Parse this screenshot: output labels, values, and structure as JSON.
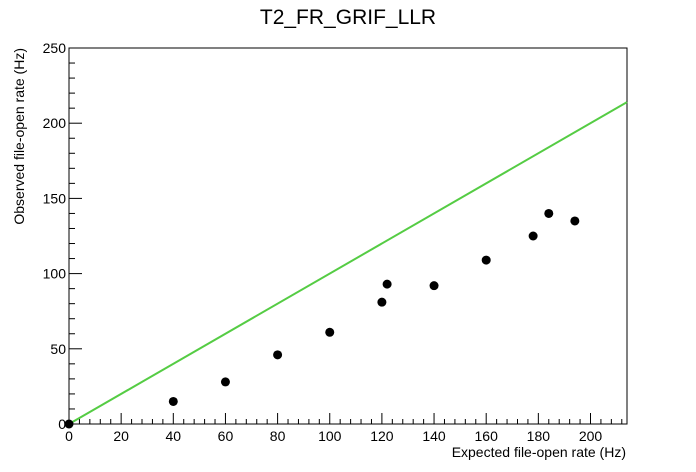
{
  "chart_data": {
    "type": "scatter",
    "title": "T2_FR_GRIF_LLR",
    "xlabel": "Expected file-open rate (Hz)",
    "ylabel": "Observed file-open rate (Hz)",
    "xlim": [
      0,
      214
    ],
    "ylim": [
      0,
      250
    ],
    "x_ticks": [
      0,
      20,
      40,
      60,
      80,
      100,
      120,
      140,
      160,
      180,
      200
    ],
    "y_ticks": [
      0,
      50,
      100,
      150,
      200,
      250
    ],
    "x_minor_step": 4,
    "y_minor_step": 10,
    "grid": false,
    "series": [
      {
        "type": "scatter",
        "color": "#000000",
        "x": [
          0,
          40,
          60,
          80,
          100,
          120,
          122,
          140,
          160,
          178,
          184,
          194
        ],
        "y": [
          0,
          15,
          28,
          46,
          61,
          81,
          93,
          92,
          109,
          125,
          140,
          135
        ]
      },
      {
        "type": "line",
        "color": "#55cc44",
        "x": [
          0,
          214
        ],
        "y": [
          0,
          214
        ]
      }
    ]
  }
}
